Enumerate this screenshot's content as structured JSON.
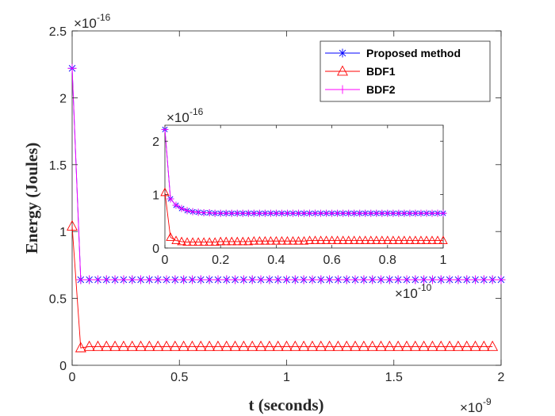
{
  "chart_data": [
    {
      "type": "line",
      "xlabel": "t (seconds)",
      "ylabel": "Energy (Joules)",
      "x_exponent": "-9",
      "y_exponent": "-16",
      "exponent_prefix": "×10",
      "xlim": [
        0,
        2
      ],
      "ylim": [
        0,
        2.5
      ],
      "xticks": [
        0,
        0.5,
        1,
        1.5,
        2
      ],
      "xtick_labels": [
        "0",
        "0.5",
        "1",
        "1.5",
        "2"
      ],
      "yticks": [
        0,
        0.5,
        1,
        1.5,
        2,
        2.5
      ],
      "ytick_labels": [
        "0",
        "0.5",
        "1",
        "1.5",
        "2",
        "2.5"
      ],
      "grid": false,
      "legend_position": "top-right",
      "series": [
        {
          "name": "Proposed method",
          "color": "#0000FF",
          "marker": "asterisk",
          "x": [
            0,
            0.04,
            0.08,
            0.12,
            0.16,
            0.2,
            0.24,
            0.28,
            0.32,
            0.36,
            0.4,
            0.44,
            0.48,
            0.52,
            0.56,
            0.6,
            0.64,
            0.68,
            0.72,
            0.76,
            0.8,
            0.84,
            0.88,
            0.92,
            0.96,
            1.0,
            1.04,
            1.08,
            1.12,
            1.16,
            1.2,
            1.24,
            1.28,
            1.32,
            1.36,
            1.4,
            1.44,
            1.48,
            1.52,
            1.56,
            1.6,
            1.64,
            1.68,
            1.72,
            1.76,
            1.8,
            1.84,
            1.88,
            1.92,
            1.96,
            2.0
          ],
          "y": [
            2.22,
            0.64,
            0.64,
            0.64,
            0.64,
            0.64,
            0.64,
            0.64,
            0.64,
            0.64,
            0.64,
            0.64,
            0.64,
            0.64,
            0.64,
            0.64,
            0.64,
            0.64,
            0.64,
            0.64,
            0.64,
            0.64,
            0.64,
            0.64,
            0.64,
            0.64,
            0.64,
            0.64,
            0.64,
            0.64,
            0.64,
            0.64,
            0.64,
            0.64,
            0.64,
            0.64,
            0.64,
            0.64,
            0.64,
            0.64,
            0.64,
            0.64,
            0.64,
            0.64,
            0.64,
            0.64,
            0.64,
            0.64,
            0.64,
            0.64,
            0.64
          ]
        },
        {
          "name": "BDF1",
          "color": "#FF0000",
          "marker": "triangle",
          "x": [
            0,
            0.04,
            0.08,
            0.12,
            0.16,
            0.2,
            0.24,
            0.28,
            0.32,
            0.36,
            0.4,
            0.44,
            0.48,
            0.52,
            0.56,
            0.6,
            0.64,
            0.68,
            0.72,
            0.76,
            0.8,
            0.84,
            0.88,
            0.92,
            0.96,
            1.0,
            1.04,
            1.08,
            1.12,
            1.16,
            1.2,
            1.24,
            1.28,
            1.32,
            1.36,
            1.4,
            1.44,
            1.48,
            1.52,
            1.56,
            1.6,
            1.64,
            1.68,
            1.72,
            1.76,
            1.8,
            1.84,
            1.88,
            1.92,
            1.96
          ],
          "y": [
            1.04,
            0.13,
            0.14,
            0.14,
            0.14,
            0.14,
            0.14,
            0.14,
            0.14,
            0.14,
            0.14,
            0.14,
            0.14,
            0.14,
            0.14,
            0.14,
            0.14,
            0.14,
            0.14,
            0.14,
            0.14,
            0.14,
            0.14,
            0.14,
            0.14,
            0.14,
            0.14,
            0.14,
            0.14,
            0.14,
            0.14,
            0.14,
            0.14,
            0.14,
            0.14,
            0.14,
            0.14,
            0.14,
            0.14,
            0.14,
            0.14,
            0.14,
            0.14,
            0.14,
            0.14,
            0.14,
            0.14,
            0.14,
            0.14,
            0.14
          ]
        },
        {
          "name": "BDF2",
          "color": "#FF00FF",
          "marker": "plus",
          "x": [
            0,
            0.04,
            0.08,
            0.12,
            0.16,
            0.2,
            0.24,
            0.28,
            0.32,
            0.36,
            0.4,
            0.44,
            0.48,
            0.52,
            0.56,
            0.6,
            0.64,
            0.68,
            0.72,
            0.76,
            0.8,
            0.84,
            0.88,
            0.92,
            0.96,
            1.0,
            1.04,
            1.08,
            1.12,
            1.16,
            1.2,
            1.24,
            1.28,
            1.32,
            1.36,
            1.4,
            1.44,
            1.48,
            1.52,
            1.56,
            1.6,
            1.64,
            1.68,
            1.72,
            1.76,
            1.8,
            1.84,
            1.88,
            1.92,
            1.96,
            2.0
          ],
          "y": [
            2.22,
            0.64,
            0.64,
            0.64,
            0.64,
            0.64,
            0.64,
            0.64,
            0.64,
            0.64,
            0.64,
            0.64,
            0.64,
            0.64,
            0.64,
            0.64,
            0.64,
            0.64,
            0.64,
            0.64,
            0.64,
            0.64,
            0.64,
            0.64,
            0.64,
            0.64,
            0.64,
            0.64,
            0.64,
            0.64,
            0.64,
            0.64,
            0.64,
            0.64,
            0.64,
            0.64,
            0.64,
            0.64,
            0.64,
            0.64,
            0.64,
            0.64,
            0.64,
            0.64,
            0.64,
            0.64,
            0.64,
            0.64,
            0.64,
            0.64,
            0.64
          ]
        }
      ]
    },
    {
      "type": "line",
      "xlabel": "",
      "ylabel": "",
      "x_exponent": "-10",
      "y_exponent": "-16",
      "exponent_prefix": "×10",
      "xlim": [
        0,
        1
      ],
      "ylim": [
        0,
        2.3
      ],
      "xticks": [
        0,
        0.2,
        0.4,
        0.6,
        0.8,
        1
      ],
      "xtick_labels": [
        "0",
        "0.2",
        "0.4",
        "0.6",
        "0.8",
        "1"
      ],
      "yticks": [
        0,
        1,
        2
      ],
      "ytick_labels": [
        "0",
        "1",
        "2"
      ],
      "grid": false,
      "series": [
        {
          "name": "Proposed method",
          "color": "#0000FF",
          "marker": "asterisk",
          "x": [
            0,
            0.02,
            0.04,
            0.06,
            0.08,
            0.1,
            0.12,
            0.14,
            0.16,
            0.18,
            0.2,
            0.22,
            0.24,
            0.26,
            0.28,
            0.3,
            0.32,
            0.34,
            0.36,
            0.38,
            0.4,
            0.42,
            0.44,
            0.46,
            0.48,
            0.5,
            0.52,
            0.54,
            0.56,
            0.58,
            0.6,
            0.62,
            0.64,
            0.66,
            0.68,
            0.7,
            0.72,
            0.74,
            0.76,
            0.78,
            0.8,
            0.82,
            0.84,
            0.86,
            0.88,
            0.9,
            0.92,
            0.94,
            0.96,
            0.98,
            1.0
          ],
          "y": [
            2.22,
            0.92,
            0.8,
            0.74,
            0.7,
            0.68,
            0.67,
            0.66,
            0.66,
            0.65,
            0.65,
            0.65,
            0.65,
            0.65,
            0.65,
            0.65,
            0.65,
            0.65,
            0.65,
            0.65,
            0.65,
            0.65,
            0.65,
            0.65,
            0.65,
            0.65,
            0.65,
            0.65,
            0.65,
            0.65,
            0.65,
            0.65,
            0.65,
            0.65,
            0.65,
            0.65,
            0.65,
            0.65,
            0.65,
            0.65,
            0.65,
            0.65,
            0.65,
            0.65,
            0.65,
            0.65,
            0.65,
            0.65,
            0.65,
            0.65,
            0.65
          ]
        },
        {
          "name": "BDF1",
          "color": "#FF0000",
          "marker": "triangle",
          "x": [
            0,
            0.02,
            0.04,
            0.06,
            0.08,
            0.1,
            0.12,
            0.14,
            0.16,
            0.18,
            0.2,
            0.22,
            0.24,
            0.26,
            0.28,
            0.3,
            0.32,
            0.34,
            0.36,
            0.38,
            0.4,
            0.42,
            0.44,
            0.46,
            0.48,
            0.5,
            0.52,
            0.54,
            0.56,
            0.58,
            0.6,
            0.62,
            0.64,
            0.66,
            0.68,
            0.7,
            0.72,
            0.74,
            0.76,
            0.78,
            0.8,
            0.82,
            0.84,
            0.86,
            0.88,
            0.9,
            0.92,
            0.94,
            0.96,
            0.98,
            1.0
          ],
          "y": [
            1.04,
            0.2,
            0.14,
            0.12,
            0.11,
            0.11,
            0.11,
            0.11,
            0.11,
            0.11,
            0.12,
            0.12,
            0.12,
            0.12,
            0.12,
            0.12,
            0.13,
            0.13,
            0.13,
            0.13,
            0.13,
            0.13,
            0.13,
            0.13,
            0.13,
            0.13,
            0.14,
            0.14,
            0.14,
            0.14,
            0.14,
            0.14,
            0.14,
            0.14,
            0.14,
            0.14,
            0.14,
            0.14,
            0.14,
            0.14,
            0.14,
            0.14,
            0.14,
            0.14,
            0.14,
            0.14,
            0.14,
            0.14,
            0.14,
            0.14,
            0.14
          ]
        },
        {
          "name": "BDF2",
          "color": "#FF00FF",
          "marker": "plus",
          "x": [
            0,
            0.02,
            0.04,
            0.06,
            0.08,
            0.1,
            0.12,
            0.14,
            0.16,
            0.18,
            0.2,
            0.22,
            0.24,
            0.26,
            0.28,
            0.3,
            0.32,
            0.34,
            0.36,
            0.38,
            0.4,
            0.42,
            0.44,
            0.46,
            0.48,
            0.5,
            0.52,
            0.54,
            0.56,
            0.58,
            0.6,
            0.62,
            0.64,
            0.66,
            0.68,
            0.7,
            0.72,
            0.74,
            0.76,
            0.78,
            0.8,
            0.82,
            0.84,
            0.86,
            0.88,
            0.9,
            0.92,
            0.94,
            0.96,
            0.98,
            1.0
          ],
          "y": [
            2.22,
            0.92,
            0.8,
            0.74,
            0.7,
            0.68,
            0.67,
            0.66,
            0.66,
            0.65,
            0.65,
            0.65,
            0.65,
            0.65,
            0.65,
            0.65,
            0.65,
            0.65,
            0.65,
            0.65,
            0.65,
            0.65,
            0.65,
            0.65,
            0.65,
            0.65,
            0.65,
            0.65,
            0.65,
            0.65,
            0.65,
            0.65,
            0.65,
            0.65,
            0.65,
            0.65,
            0.65,
            0.65,
            0.65,
            0.65,
            0.65,
            0.65,
            0.65,
            0.65,
            0.65,
            0.65,
            0.65,
            0.65,
            0.65,
            0.65,
            0.65
          ]
        }
      ]
    }
  ]
}
